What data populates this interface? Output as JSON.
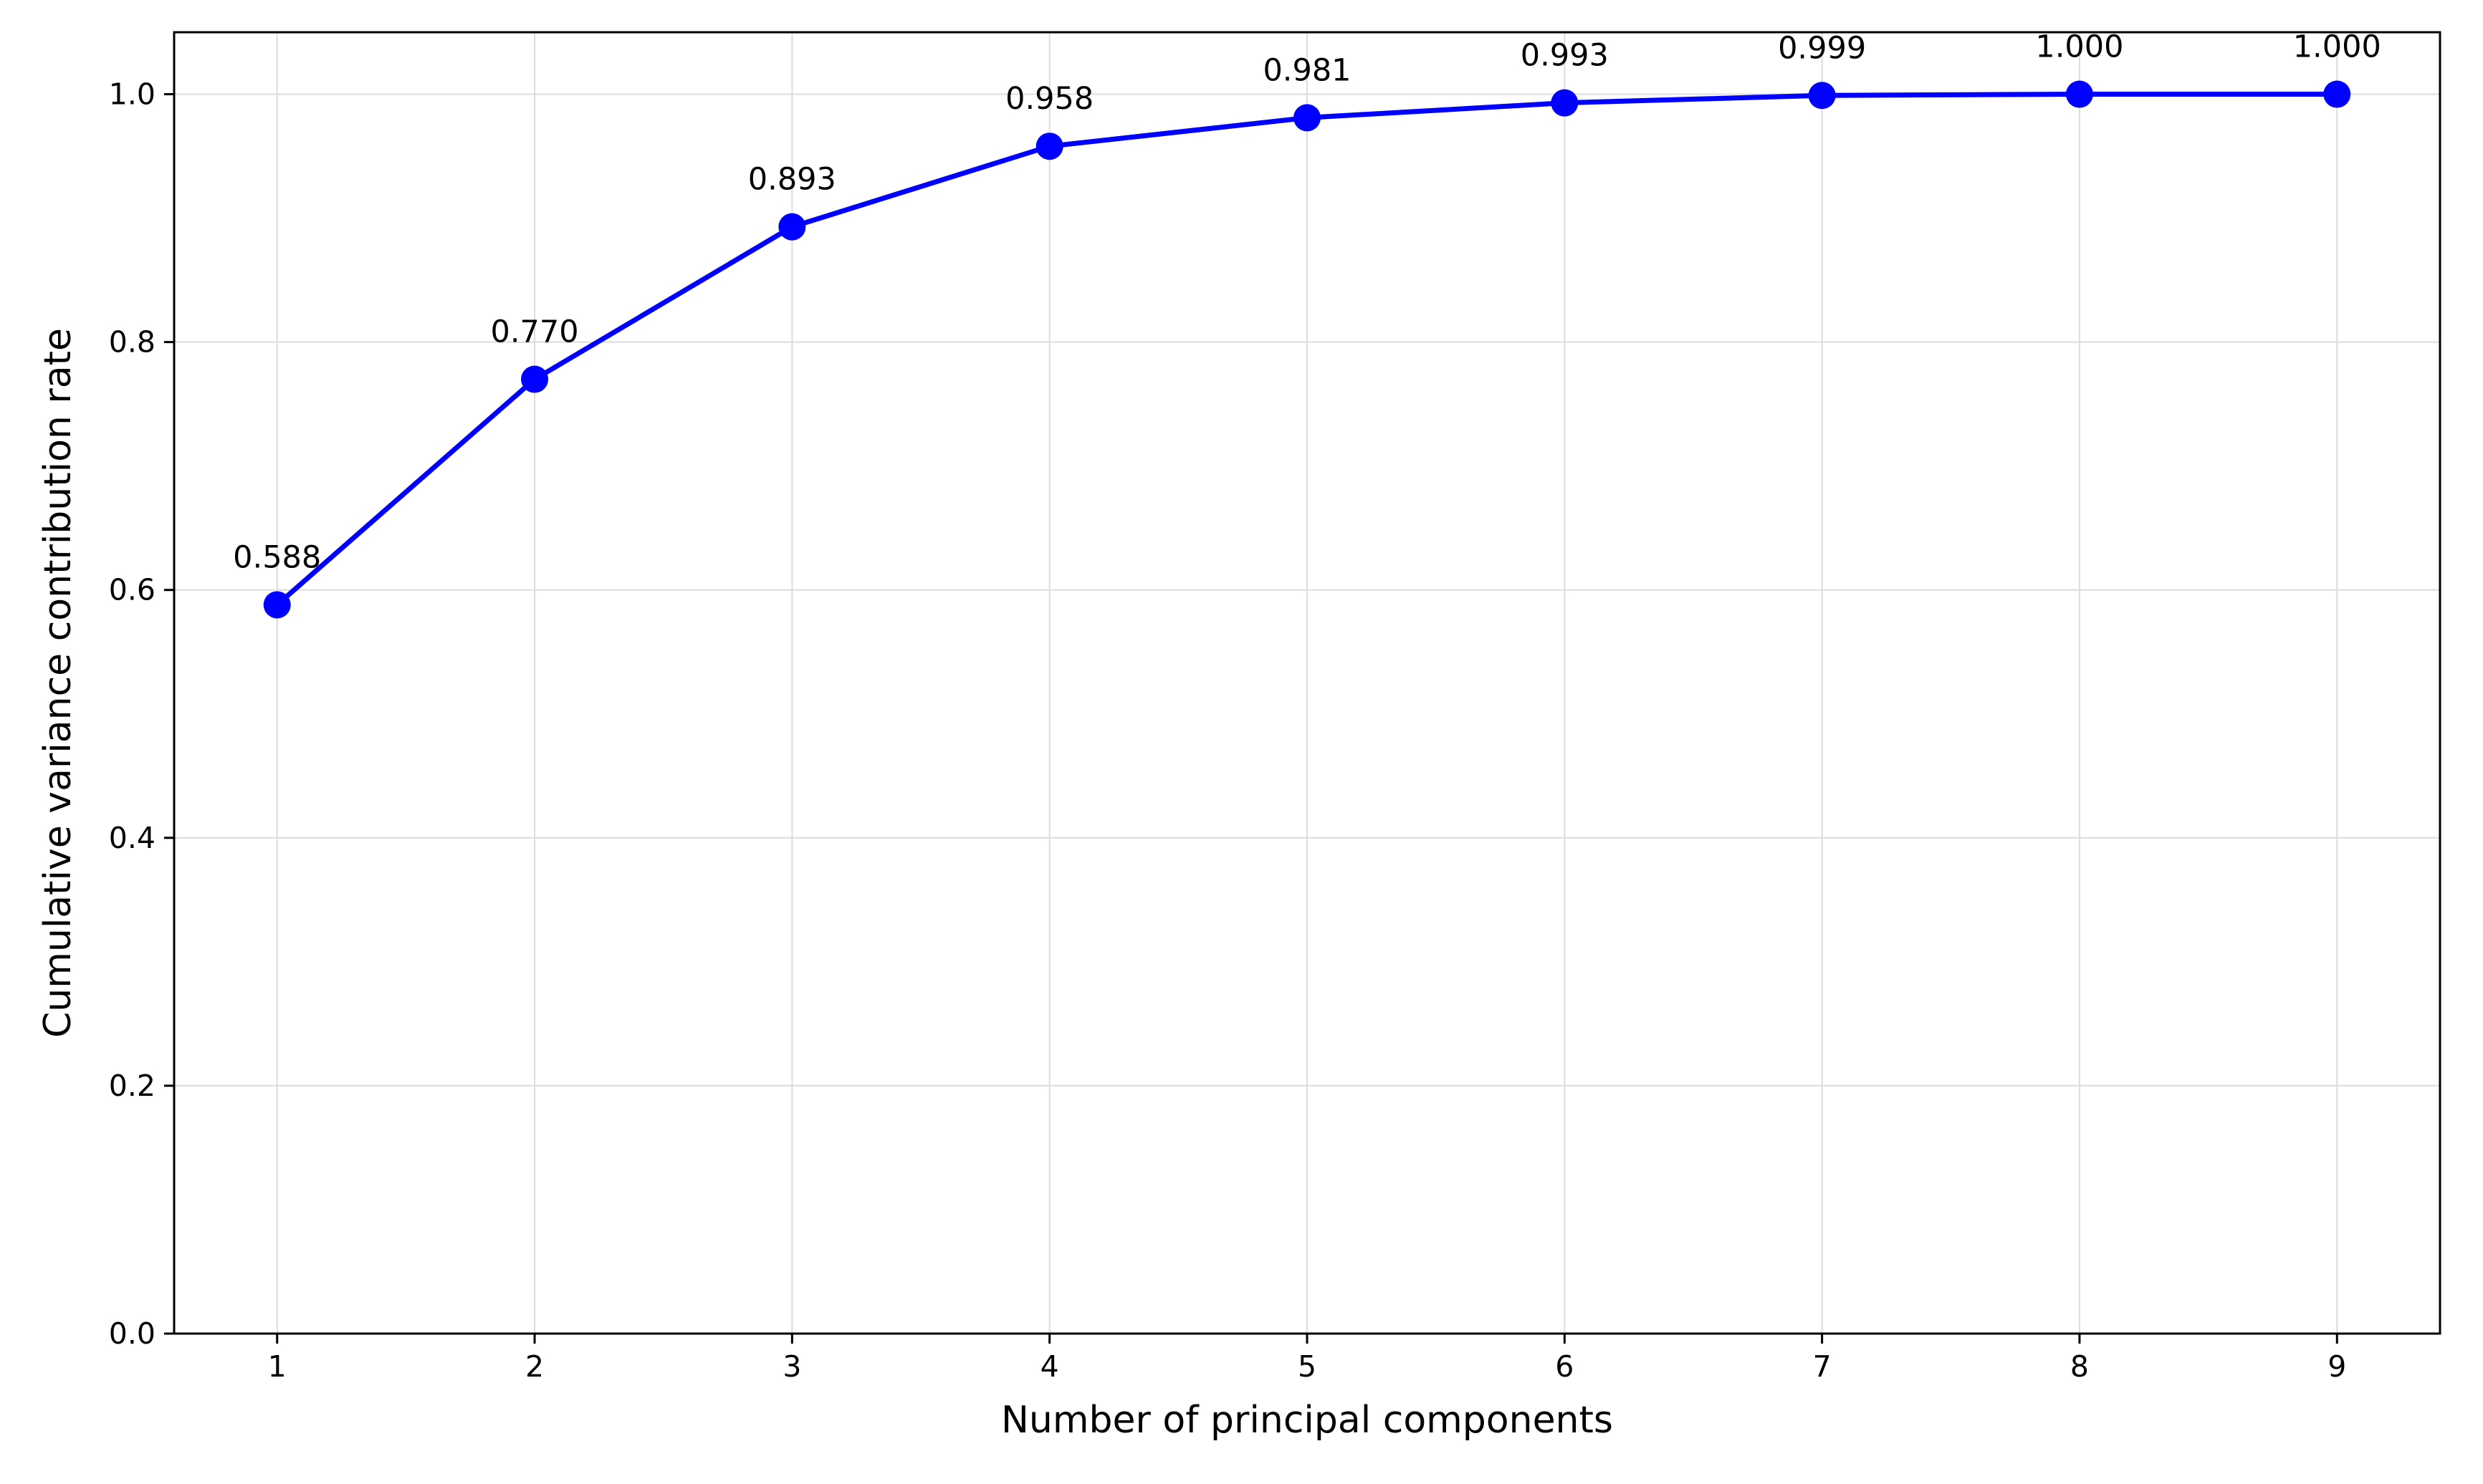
{
  "chart_data": {
    "type": "line",
    "title": "",
    "xlabel": "Number of principal components",
    "ylabel": "Cumulative variance contribution rate",
    "x": [
      1,
      2,
      3,
      4,
      5,
      6,
      7,
      8,
      9
    ],
    "series": [
      {
        "values": [
          0.588,
          0.77,
          0.893,
          0.958,
          0.981,
          0.993,
          0.999,
          1.0,
          1.0
        ],
        "color": "#0000ff",
        "marker": "circle"
      }
    ],
    "data_labels": [
      "0.588",
      "0.770",
      "0.893",
      "0.958",
      "0.981",
      "0.993",
      "0.999",
      "1.000",
      "1.000"
    ],
    "xticks": [
      1,
      2,
      3,
      4,
      5,
      6,
      7,
      8,
      9
    ],
    "xtick_labels": [
      "1",
      "2",
      "3",
      "4",
      "5",
      "6",
      "7",
      "8",
      "9"
    ],
    "yticks": [
      0.0,
      0.2,
      0.4,
      0.6,
      0.8,
      1.0
    ],
    "ytick_labels": [
      "0.0",
      "0.2",
      "0.4",
      "0.6",
      "0.8",
      "1.0"
    ],
    "xlim": [
      0.6,
      9.4
    ],
    "ylim": [
      0.0,
      1.05
    ],
    "grid": true,
    "legend": false
  }
}
